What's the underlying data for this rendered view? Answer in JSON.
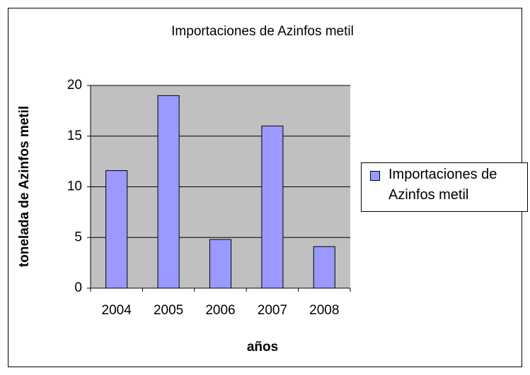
{
  "chart_data": {
    "type": "bar",
    "title": "Importaciones de Azinfos metil",
    "x_label": "años",
    "y_label": "tonelada de Azinfos metil",
    "categories": [
      "2004",
      "2005",
      "2006",
      "2007",
      "2008"
    ],
    "series": [
      {
        "name": "Importaciones de Azinfos metil",
        "color": "#9999ff",
        "values": [
          11.6,
          19,
          4.8,
          16,
          4.1
        ]
      }
    ],
    "ylim": [
      0,
      20
    ],
    "yticks": [
      0,
      5,
      10,
      15,
      20
    ],
    "grid": true,
    "legend": "right"
  }
}
